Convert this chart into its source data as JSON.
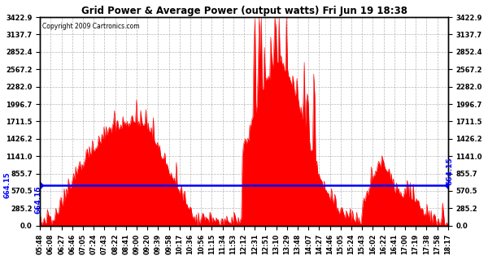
{
  "title": "Grid Power & Average Power (output watts) Fri Jun 19 18:38",
  "copyright": "Copyright 2009 Cartronics.com",
  "avg_line_value": 664.15,
  "y_ticks": [
    0.0,
    285.2,
    570.5,
    855.7,
    1141.0,
    1426.2,
    1711.5,
    1996.7,
    2282.0,
    2567.2,
    2852.4,
    3137.7,
    3422.9
  ],
  "y_max": 3422.9,
  "y_min": 0.0,
  "background_color": "#ffffff",
  "plot_bg_color": "#ffffff",
  "grid_color": "#888888",
  "fill_color": "#ff0000",
  "line_color": "#ff0000",
  "avg_line_color": "#0000ff",
  "title_color": "#000000",
  "x_labels": [
    "05:48",
    "06:08",
    "06:27",
    "06:46",
    "07:05",
    "07:24",
    "07:43",
    "08:22",
    "08:41",
    "09:00",
    "09:20",
    "09:39",
    "09:58",
    "10:17",
    "10:36",
    "10:56",
    "11:15",
    "11:34",
    "11:53",
    "12:12",
    "12:31",
    "12:51",
    "13:10",
    "13:29",
    "13:48",
    "14:07",
    "14:27",
    "14:46",
    "15:05",
    "15:24",
    "15:43",
    "16:02",
    "16:22",
    "16:41",
    "17:00",
    "17:19",
    "17:38",
    "17:58",
    "18:17"
  ],
  "n_points": 390,
  "figwidth": 6.0,
  "figheight": 3.2,
  "dpi": 100
}
